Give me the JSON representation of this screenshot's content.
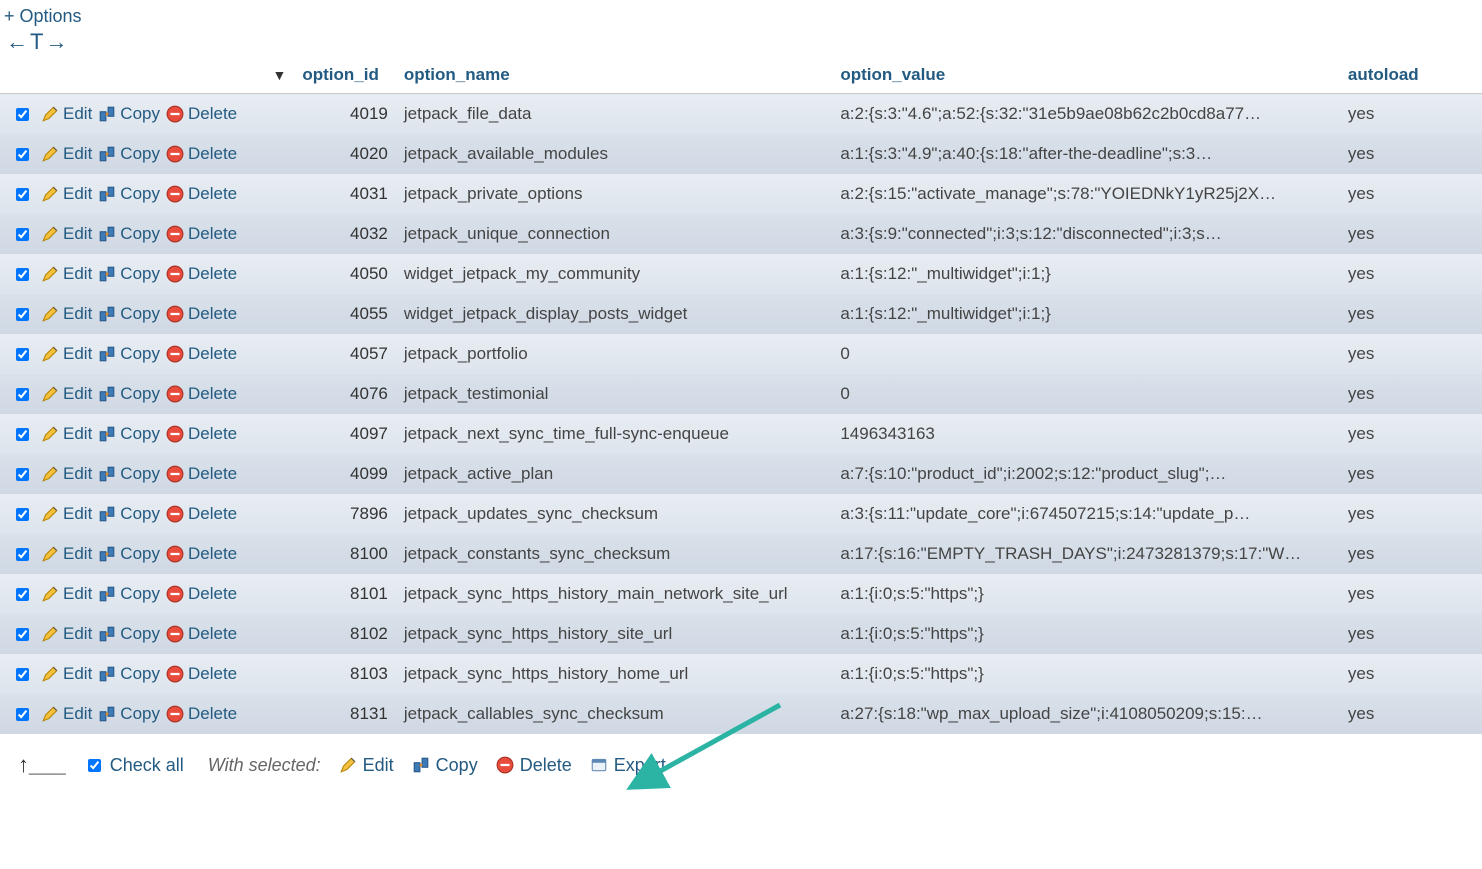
{
  "colors": {
    "link": "#235a81",
    "row_odd_top": "#e8edf3",
    "row_odd_bot": "#dde4ec",
    "row_even_top": "#d9e1ea",
    "row_even_bot": "#cfd8e3",
    "text": "#333333",
    "annotation_arrow": "#2bb3a3"
  },
  "header": {
    "options_label": "+ Options"
  },
  "columns": {
    "option_id": "option_id",
    "option_name": "option_name",
    "option_value": "option_value",
    "autoload": "autoload"
  },
  "row_actions": {
    "edit": "Edit",
    "copy": "Copy",
    "delete": "Delete"
  },
  "footer": {
    "check_all": "Check all",
    "with_selected": "With selected:",
    "edit": "Edit",
    "copy": "Copy",
    "delete": "Delete",
    "export": "Export"
  },
  "rows": [
    {
      "id": "4019",
      "name": "jetpack_file_data",
      "value": "a:2:{s:3:\"4.6\";a:52:{s:32:\"31e5b9ae08b62c2b0cd8a77…",
      "autoload": "yes"
    },
    {
      "id": "4020",
      "name": "jetpack_available_modules",
      "value": "a:1:{s:3:\"4.9\";a:40:{s:18:\"after-the-deadline\";s:3…",
      "autoload": "yes"
    },
    {
      "id": "4031",
      "name": "jetpack_private_options",
      "value": "a:2:{s:15:\"activate_manage\";s:78:\"YOIEDNkY1yR25j2X…",
      "autoload": "yes"
    },
    {
      "id": "4032",
      "name": "jetpack_unique_connection",
      "value": "a:3:{s:9:\"connected\";i:3;s:12:\"disconnected\";i:3;s…",
      "autoload": "yes"
    },
    {
      "id": "4050",
      "name": "widget_jetpack_my_community",
      "value": "a:1:{s:12:\"_multiwidget\";i:1;}",
      "autoload": "yes"
    },
    {
      "id": "4055",
      "name": "widget_jetpack_display_posts_widget",
      "value": "a:1:{s:12:\"_multiwidget\";i:1;}",
      "autoload": "yes"
    },
    {
      "id": "4057",
      "name": "jetpack_portfolio",
      "value": "0",
      "autoload": "yes"
    },
    {
      "id": "4076",
      "name": "jetpack_testimonial",
      "value": "0",
      "autoload": "yes"
    },
    {
      "id": "4097",
      "name": "jetpack_next_sync_time_full-sync-enqueue",
      "value": "1496343163",
      "autoload": "yes"
    },
    {
      "id": "4099",
      "name": "jetpack_active_plan",
      "value": "a:7:{s:10:\"product_id\";i:2002;s:12:\"product_slug\";…",
      "autoload": "yes"
    },
    {
      "id": "7896",
      "name": "jetpack_updates_sync_checksum",
      "value": "a:3:{s:11:\"update_core\";i:674507215;s:14:\"update_p…",
      "autoload": "yes"
    },
    {
      "id": "8100",
      "name": "jetpack_constants_sync_checksum",
      "value": "a:17:{s:16:\"EMPTY_TRASH_DAYS\";i:2473281379;s:17:\"W…",
      "autoload": "yes"
    },
    {
      "id": "8101",
      "name": "jetpack_sync_https_history_main_network_site_url",
      "value": "a:1:{i:0;s:5:\"https\";}",
      "autoload": "yes"
    },
    {
      "id": "8102",
      "name": "jetpack_sync_https_history_site_url",
      "value": "a:1:{i:0;s:5:\"https\";}",
      "autoload": "yes"
    },
    {
      "id": "8103",
      "name": "jetpack_sync_https_history_home_url",
      "value": "a:1:{i:0;s:5:\"https\";}",
      "autoload": "yes"
    },
    {
      "id": "8131",
      "name": "jetpack_callables_sync_checksum",
      "value": "a:27:{s:18:\"wp_max_upload_size\";i:4108050209;s:15:…",
      "autoload": "yes"
    }
  ]
}
